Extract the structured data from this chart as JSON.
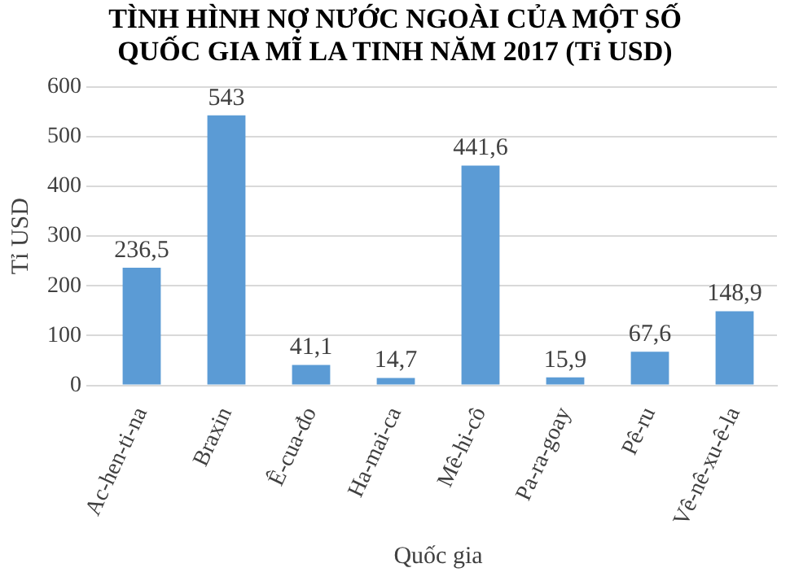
{
  "chart_data": {
    "type": "bar",
    "title": "TÌNH HÌNH NỢ NƯỚC NGOÀI CỦA MỘT SỐ QUỐC GIA MĨ LA TINH NĂM 2017 (Tỉ USD)",
    "xlabel": "Quốc gia",
    "ylabel": "Tỉ USD",
    "categories": [
      "Ac-hen-ti-na",
      "Braxin",
      "Ê-cua-đo",
      "Ha-mai-ca",
      "Mê-hi-cô",
      "Pa-ra-goay",
      "Pê-ru",
      "Vê-nê-xu-ê-la"
    ],
    "values": [
      236.5,
      543,
      41.1,
      14.7,
      441.6,
      15.9,
      67.6,
      148.9
    ],
    "value_labels": [
      "236,5",
      "543",
      "41,1",
      "14,7",
      "441,6",
      "15,9",
      "67,6",
      "148,9"
    ],
    "color": "#5b9bd5",
    "ylim": [
      0,
      600
    ],
    "yticks": [
      0,
      100,
      200,
      300,
      400,
      500,
      600
    ],
    "grid": "y",
    "legend": false
  }
}
